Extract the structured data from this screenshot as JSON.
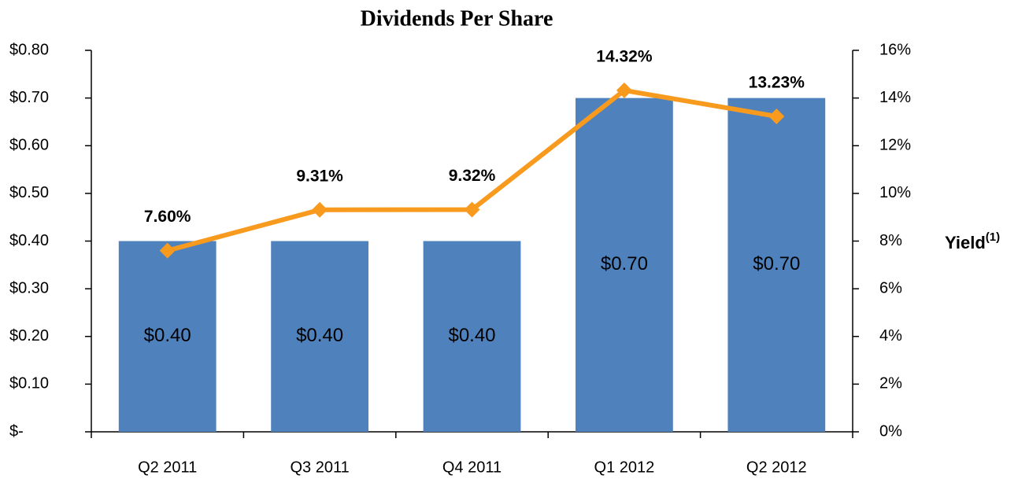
{
  "chart_data": {
    "type": "bar",
    "title": "Dividends Per Share",
    "categories": [
      "Q2 2011",
      "Q3 2011",
      "Q4 2011",
      "Q1 2012",
      "Q2 2012"
    ],
    "series": [
      {
        "type": "bar",
        "color": "#4f81bd",
        "values": [
          0.4,
          0.4,
          0.4,
          0.7,
          0.7
        ],
        "value_labels": [
          "$0.40",
          "$0.40",
          "$0.40",
          "$0.70",
          "$0.70"
        ]
      },
      {
        "type": "line",
        "axis": "y2",
        "color": "#f79a1e",
        "values": [
          7.6,
          9.31,
          9.32,
          14.32,
          13.23
        ],
        "value_labels": [
          "7.60%",
          "9.31%",
          "9.32%",
          "14.32%",
          "13.23%"
        ]
      }
    ],
    "ylim": [
      0,
      0.8
    ],
    "yticks": [
      {
        "value": 0,
        "label": "$-"
      },
      {
        "value": 0.1,
        "label": "$0.10"
      },
      {
        "value": 0.2,
        "label": "$0.20"
      },
      {
        "value": 0.3,
        "label": "$0.30"
      },
      {
        "value": 0.4,
        "label": "$0.40"
      },
      {
        "value": 0.5,
        "label": "$0.50"
      },
      {
        "value": 0.6,
        "label": "$0.60"
      },
      {
        "value": 0.7,
        "label": "$0.70"
      },
      {
        "value": 0.8,
        "label": "$0.80"
      }
    ],
    "y2lim": [
      0,
      16
    ],
    "y2ticks": [
      {
        "value": 0,
        "label": "0%"
      },
      {
        "value": 2,
        "label": "2%"
      },
      {
        "value": 4,
        "label": "4%"
      },
      {
        "value": 6,
        "label": "6%"
      },
      {
        "value": 8,
        "label": "8%"
      },
      {
        "value": 10,
        "label": "10%"
      },
      {
        "value": 12,
        "label": "12%"
      },
      {
        "value": 14,
        "label": "14%"
      },
      {
        "value": 16,
        "label": "16%"
      }
    ],
    "y2label": "Yield",
    "y2label_superscript": "(1)",
    "grid": false
  }
}
